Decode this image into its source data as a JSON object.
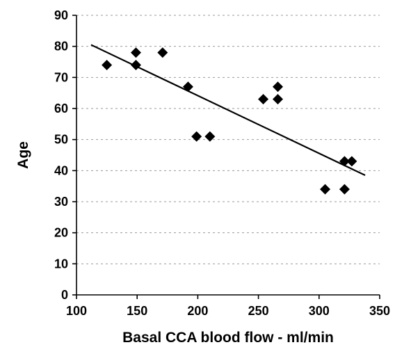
{
  "chart_data": {
    "type": "scatter",
    "title": "",
    "xlabel": "Basal CCA blood flow - ml/min",
    "ylabel": "Age",
    "xlim": [
      100,
      350
    ],
    "ylim": [
      0,
      90
    ],
    "xticks": [
      100,
      150,
      200,
      250,
      300,
      350
    ],
    "yticks": [
      0,
      10,
      20,
      30,
      40,
      50,
      60,
      70,
      80,
      90
    ],
    "grid": "horizontal-dashed",
    "legend": "none",
    "marker": "diamond",
    "color": "#000000",
    "points": [
      {
        "x": 125,
        "y": 74
      },
      {
        "x": 149,
        "y": 78
      },
      {
        "x": 149,
        "y": 74
      },
      {
        "x": 171,
        "y": 78
      },
      {
        "x": 192,
        "y": 67
      },
      {
        "x": 199,
        "y": 51
      },
      {
        "x": 210,
        "y": 51
      },
      {
        "x": 254,
        "y": 63
      },
      {
        "x": 266,
        "y": 67
      },
      {
        "x": 266,
        "y": 63
      },
      {
        "x": 305,
        "y": 34
      },
      {
        "x": 321,
        "y": 34
      },
      {
        "x": 321,
        "y": 43
      },
      {
        "x": 327,
        "y": 43
      }
    ],
    "trendline": {
      "x": [
        112,
        338
      ],
      "y": [
        80.5,
        38.5
      ]
    }
  }
}
